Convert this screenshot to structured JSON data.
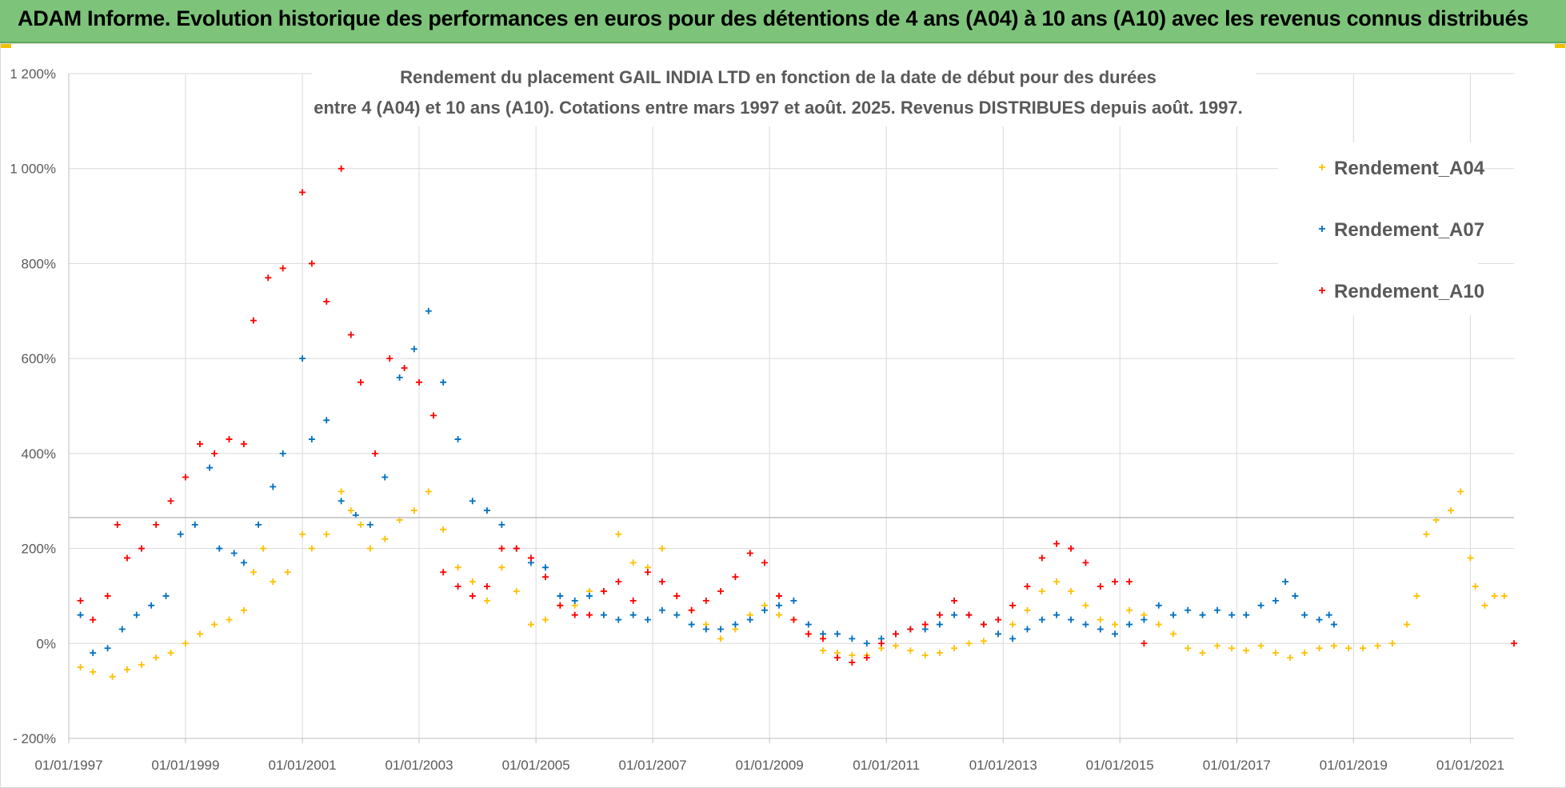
{
  "banner": {
    "title": "ADAM Informe. Evolution historique des performances en euros pour des détentions de 4 ans (A04) à 10 ans (A10) avec les revenus connus distribués"
  },
  "chart_data": {
    "type": "scatter",
    "title_line1": "Rendement du placement GAIL INDIA LTD en fonction de la date de début pour des durées",
    "title_line2": "entre 4 (A04) et 10 ans (A10). Cotations entre mars 1997 et août. 2025. Revenus DISTRIBUES depuis août. 1997.",
    "x_range": [
      "1997-01-01",
      "2021-10-01"
    ],
    "x_ticks": [
      "01/01/1997",
      "01/01/1999",
      "01/01/2001",
      "01/01/2003",
      "01/01/2005",
      "01/01/2007",
      "01/01/2009",
      "01/01/2011",
      "01/01/2013",
      "01/01/2015",
      "01/01/2017",
      "01/01/2019",
      "01/01/2021"
    ],
    "y_range": [
      -200,
      1200
    ],
    "y_ticks": [
      {
        "value": -200,
        "label": "- 200%"
      },
      {
        "value": 0,
        "label": "0%"
      },
      {
        "value": 200,
        "label": "200%"
      },
      {
        "value": 400,
        "label": "400%"
      },
      {
        "value": 600,
        "label": "600%"
      },
      {
        "value": 800,
        "label": "800%"
      },
      {
        "value": 1000,
        "label": "1 000%"
      },
      {
        "value": 1200,
        "label": "1 200%"
      }
    ],
    "grid": true,
    "legend_position": "top-right",
    "series": [
      {
        "name": "Rendement_A04",
        "color": "#ffc000",
        "points": [
          [
            "1997-03-15",
            -50
          ],
          [
            "1997-06-01",
            -60
          ],
          [
            "1997-10-01",
            -70
          ],
          [
            "1998-01-01",
            -55
          ],
          [
            "1998-04-01",
            -45
          ],
          [
            "1998-07-01",
            -30
          ],
          [
            "1998-10-01",
            -20
          ],
          [
            "1999-01-01",
            0
          ],
          [
            "1999-04-01",
            20
          ],
          [
            "1999-07-01",
            40
          ],
          [
            "1999-10-01",
            50
          ],
          [
            "2000-01-01",
            70
          ],
          [
            "2000-03-01",
            150
          ],
          [
            "2000-05-01",
            200
          ],
          [
            "2000-07-01",
            130
          ],
          [
            "2000-10-01",
            150
          ],
          [
            "2001-01-01",
            230
          ],
          [
            "2001-03-01",
            200
          ],
          [
            "2001-06-01",
            230
          ],
          [
            "2001-09-01",
            320
          ],
          [
            "2001-11-01",
            280
          ],
          [
            "2002-01-01",
            250
          ],
          [
            "2002-03-01",
            200
          ],
          [
            "2002-06-01",
            220
          ],
          [
            "2002-09-01",
            260
          ],
          [
            "2002-12-01",
            280
          ],
          [
            "2003-03-01",
            320
          ],
          [
            "2003-06-01",
            240
          ],
          [
            "2003-09-01",
            160
          ],
          [
            "2003-12-01",
            130
          ],
          [
            "2004-03-01",
            90
          ],
          [
            "2004-06-01",
            160
          ],
          [
            "2004-09-01",
            110
          ],
          [
            "2004-12-01",
            40
          ],
          [
            "2005-03-01",
            50
          ],
          [
            "2005-06-01",
            80
          ],
          [
            "2005-09-01",
            80
          ],
          [
            "2005-12-01",
            110
          ],
          [
            "2006-03-01",
            110
          ],
          [
            "2006-06-01",
            230
          ],
          [
            "2006-09-01",
            170
          ],
          [
            "2006-12-01",
            160
          ],
          [
            "2007-03-01",
            200
          ],
          [
            "2007-06-01",
            100
          ],
          [
            "2007-09-01",
            70
          ],
          [
            "2007-12-01",
            40
          ],
          [
            "2008-03-01",
            10
          ],
          [
            "2008-06-01",
            30
          ],
          [
            "2008-09-01",
            60
          ],
          [
            "2008-12-01",
            80
          ],
          [
            "2009-03-01",
            60
          ],
          [
            "2009-06-01",
            50
          ],
          [
            "2009-09-01",
            20
          ],
          [
            "2009-12-01",
            -15
          ],
          [
            "2010-03-01",
            -20
          ],
          [
            "2010-06-01",
            -25
          ],
          [
            "2010-09-01",
            -25
          ],
          [
            "2010-12-01",
            -10
          ],
          [
            "2011-03-01",
            -5
          ],
          [
            "2011-06-01",
            -15
          ],
          [
            "2011-09-01",
            -25
          ],
          [
            "2011-12-01",
            -20
          ],
          [
            "2012-03-01",
            -10
          ],
          [
            "2012-06-01",
            0
          ],
          [
            "2012-09-01",
            5
          ],
          [
            "2012-12-01",
            20
          ],
          [
            "2013-03-01",
            40
          ],
          [
            "2013-06-01",
            70
          ],
          [
            "2013-09-01",
            110
          ],
          [
            "2013-12-01",
            130
          ],
          [
            "2014-03-01",
            110
          ],
          [
            "2014-06-01",
            80
          ],
          [
            "2014-09-01",
            50
          ],
          [
            "2014-12-01",
            40
          ],
          [
            "2015-03-01",
            70
          ],
          [
            "2015-06-01",
            60
          ],
          [
            "2015-09-01",
            40
          ],
          [
            "2015-12-01",
            20
          ],
          [
            "2016-03-01",
            -10
          ],
          [
            "2016-06-01",
            -20
          ],
          [
            "2016-09-01",
            -5
          ],
          [
            "2016-12-01",
            -10
          ],
          [
            "2017-03-01",
            -15
          ],
          [
            "2017-06-01",
            -5
          ],
          [
            "2017-09-01",
            -20
          ],
          [
            "2017-12-01",
            -30
          ],
          [
            "2018-03-01",
            -20
          ],
          [
            "2018-06-01",
            -10
          ],
          [
            "2018-09-01",
            -5
          ],
          [
            "2018-12-01",
            -10
          ],
          [
            "2019-03-01",
            -10
          ],
          [
            "2019-06-01",
            -5
          ],
          [
            "2019-09-01",
            0
          ],
          [
            "2019-12-01",
            40
          ],
          [
            "2020-02-01",
            100
          ],
          [
            "2020-04-01",
            230
          ],
          [
            "2020-06-01",
            260
          ],
          [
            "2020-09-01",
            280
          ],
          [
            "2020-11-01",
            320
          ],
          [
            "2021-01-01",
            180
          ],
          [
            "2021-02-01",
            120
          ],
          [
            "2021-04-01",
            80
          ],
          [
            "2021-06-01",
            100
          ],
          [
            "2021-08-01",
            100
          ]
        ]
      },
      {
        "name": "Rendement_A07",
        "color": "#0070c0",
        "points": [
          [
            "1997-03-15",
            60
          ],
          [
            "1997-06-01",
            -20
          ],
          [
            "1997-09-01",
            -10
          ],
          [
            "1997-12-01",
            30
          ],
          [
            "1998-03-01",
            60
          ],
          [
            "1998-06-01",
            80
          ],
          [
            "1998-09-01",
            100
          ],
          [
            "1998-12-01",
            230
          ],
          [
            "1999-03-01",
            250
          ],
          [
            "1999-06-01",
            370
          ],
          [
            "1999-08-01",
            200
          ],
          [
            "1999-11-01",
            190
          ],
          [
            "2000-01-01",
            170
          ],
          [
            "2000-04-01",
            250
          ],
          [
            "2000-07-01",
            330
          ],
          [
            "2000-09-01",
            400
          ],
          [
            "2001-01-01",
            600
          ],
          [
            "2001-03-01",
            430
          ],
          [
            "2001-06-01",
            470
          ],
          [
            "2001-09-01",
            300
          ],
          [
            "2001-12-01",
            270
          ],
          [
            "2002-03-01",
            250
          ],
          [
            "2002-06-01",
            350
          ],
          [
            "2002-09-01",
            560
          ],
          [
            "2002-12-01",
            620
          ],
          [
            "2003-03-01",
            700
          ],
          [
            "2003-06-01",
            550
          ],
          [
            "2003-09-01",
            430
          ],
          [
            "2003-12-01",
            300
          ],
          [
            "2004-03-01",
            280
          ],
          [
            "2004-06-01",
            250
          ],
          [
            "2004-09-01",
            200
          ],
          [
            "2004-12-01",
            170
          ],
          [
            "2005-03-01",
            160
          ],
          [
            "2005-06-01",
            100
          ],
          [
            "2005-09-01",
            90
          ],
          [
            "2005-12-01",
            100
          ],
          [
            "2006-03-01",
            60
          ],
          [
            "2006-06-01",
            50
          ],
          [
            "2006-09-01",
            60
          ],
          [
            "2006-12-01",
            50
          ],
          [
            "2007-03-01",
            70
          ],
          [
            "2007-06-01",
            60
          ],
          [
            "2007-09-01",
            40
          ],
          [
            "2007-12-01",
            30
          ],
          [
            "2008-03-01",
            30
          ],
          [
            "2008-06-01",
            40
          ],
          [
            "2008-09-01",
            50
          ],
          [
            "2008-12-01",
            70
          ],
          [
            "2009-03-01",
            80
          ],
          [
            "2009-06-01",
            90
          ],
          [
            "2009-09-01",
            40
          ],
          [
            "2009-12-01",
            20
          ],
          [
            "2010-03-01",
            20
          ],
          [
            "2010-06-01",
            10
          ],
          [
            "2010-09-01",
            0
          ],
          [
            "2010-12-01",
            10
          ],
          [
            "2011-03-01",
            20
          ],
          [
            "2011-06-01",
            30
          ],
          [
            "2011-09-01",
            30
          ],
          [
            "2011-12-01",
            40
          ],
          [
            "2012-03-01",
            60
          ],
          [
            "2012-06-01",
            60
          ],
          [
            "2012-09-01",
            40
          ],
          [
            "2012-12-01",
            20
          ],
          [
            "2013-03-01",
            10
          ],
          [
            "2013-06-01",
            30
          ],
          [
            "2013-09-01",
            50
          ],
          [
            "2013-12-01",
            60
          ],
          [
            "2014-03-01",
            50
          ],
          [
            "2014-06-01",
            40
          ],
          [
            "2014-09-01",
            30
          ],
          [
            "2014-12-01",
            20
          ],
          [
            "2015-03-01",
            40
          ],
          [
            "2015-06-01",
            50
          ],
          [
            "2015-09-01",
            80
          ],
          [
            "2015-12-01",
            60
          ],
          [
            "2016-03-01",
            70
          ],
          [
            "2016-06-01",
            60
          ],
          [
            "2016-09-01",
            70
          ],
          [
            "2016-12-01",
            60
          ],
          [
            "2017-03-01",
            60
          ],
          [
            "2017-06-01",
            80
          ],
          [
            "2017-09-01",
            90
          ],
          [
            "2017-11-01",
            130
          ],
          [
            "2018-01-01",
            100
          ],
          [
            "2018-03-01",
            60
          ],
          [
            "2018-06-01",
            50
          ],
          [
            "2018-08-01",
            60
          ],
          [
            "2018-09-01",
            40
          ]
        ]
      },
      {
        "name": "Rendement_A10",
        "color": "#ff0000",
        "points": [
          [
            "1997-03-15",
            90
          ],
          [
            "1997-06-01",
            50
          ],
          [
            "1997-09-01",
            100
          ],
          [
            "1997-11-01",
            250
          ],
          [
            "1998-01-01",
            180
          ],
          [
            "1998-04-01",
            200
          ],
          [
            "1998-07-01",
            250
          ],
          [
            "1998-10-01",
            300
          ],
          [
            "1999-01-01",
            350
          ],
          [
            "1999-04-01",
            420
          ],
          [
            "1999-07-01",
            400
          ],
          [
            "1999-10-01",
            430
          ],
          [
            "2000-01-01",
            420
          ],
          [
            "2000-03-01",
            680
          ],
          [
            "2000-06-01",
            770
          ],
          [
            "2000-09-01",
            790
          ],
          [
            "2001-01-01",
            950
          ],
          [
            "2001-03-01",
            800
          ],
          [
            "2001-06-01",
            720
          ],
          [
            "2001-09-01",
            1000
          ],
          [
            "2001-11-01",
            650
          ],
          [
            "2002-01-01",
            550
          ],
          [
            "2002-04-01",
            400
          ],
          [
            "2002-07-01",
            600
          ],
          [
            "2002-10-01",
            580
          ],
          [
            "2003-01-01",
            550
          ],
          [
            "2003-04-01",
            480
          ],
          [
            "2003-06-01",
            150
          ],
          [
            "2003-09-01",
            120
          ],
          [
            "2003-12-01",
            100
          ],
          [
            "2004-03-01",
            120
          ],
          [
            "2004-06-01",
            200
          ],
          [
            "2004-09-01",
            200
          ],
          [
            "2004-12-01",
            180
          ],
          [
            "2005-03-01",
            140
          ],
          [
            "2005-06-01",
            80
          ],
          [
            "2005-09-01",
            60
          ],
          [
            "2005-12-01",
            60
          ],
          [
            "2006-03-01",
            110
          ],
          [
            "2006-06-01",
            130
          ],
          [
            "2006-09-01",
            90
          ],
          [
            "2006-12-01",
            150
          ],
          [
            "2007-03-01",
            130
          ],
          [
            "2007-06-01",
            100
          ],
          [
            "2007-09-01",
            70
          ],
          [
            "2007-12-01",
            90
          ],
          [
            "2008-03-01",
            110
          ],
          [
            "2008-06-01",
            140
          ],
          [
            "2008-09-01",
            190
          ],
          [
            "2008-12-01",
            170
          ],
          [
            "2009-03-01",
            100
          ],
          [
            "2009-06-01",
            50
          ],
          [
            "2009-09-01",
            20
          ],
          [
            "2009-12-01",
            10
          ],
          [
            "2010-03-01",
            -30
          ],
          [
            "2010-06-01",
            -40
          ],
          [
            "2010-09-01",
            -30
          ],
          [
            "2010-12-01",
            0
          ],
          [
            "2011-03-01",
            20
          ],
          [
            "2011-06-01",
            30
          ],
          [
            "2011-09-01",
            40
          ],
          [
            "2011-12-01",
            60
          ],
          [
            "2012-03-01",
            90
          ],
          [
            "2012-06-01",
            60
          ],
          [
            "2012-09-01",
            40
          ],
          [
            "2012-12-01",
            50
          ],
          [
            "2013-03-01",
            80
          ],
          [
            "2013-06-01",
            120
          ],
          [
            "2013-09-01",
            180
          ],
          [
            "2013-12-01",
            210
          ],
          [
            "2014-03-01",
            200
          ],
          [
            "2014-06-01",
            170
          ],
          [
            "2014-09-01",
            120
          ],
          [
            "2014-12-01",
            130
          ],
          [
            "2015-03-01",
            130
          ],
          [
            "2015-06-01",
            0
          ],
          [
            "2021-10-01",
            0
          ]
        ]
      }
    ]
  }
}
